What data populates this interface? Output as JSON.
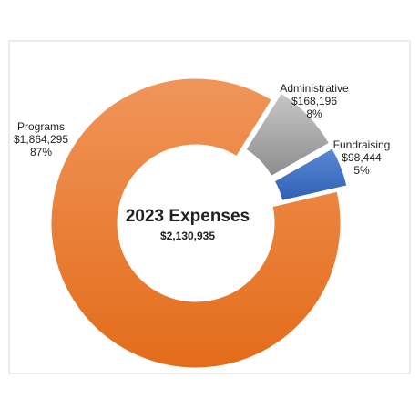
{
  "chart_data": {
    "type": "donut",
    "title": "2023 Expenses",
    "subtitle": "$2,130,935",
    "categories": [
      "Programs",
      "Administrative",
      "Fundraising"
    ],
    "values": [
      1864295,
      168196,
      98444
    ],
    "value_labels": [
      "$1,864,295",
      "$168,196",
      "$98,444"
    ],
    "percents": [
      87,
      8,
      5
    ],
    "percent_labels": [
      "87%",
      "8%",
      "5%"
    ],
    "colors": [
      "#ed7d31",
      "#a5a5a5",
      "#4472c4"
    ],
    "exploded": [
      false,
      true,
      true
    ]
  }
}
